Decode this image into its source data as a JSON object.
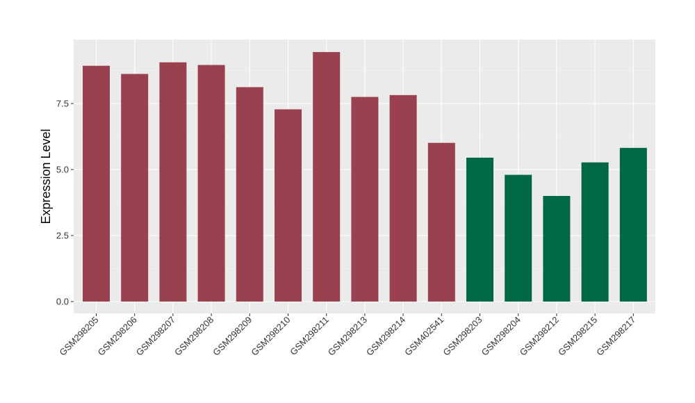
{
  "chart_data": {
    "type": "bar",
    "title": "",
    "xlabel": "",
    "ylabel": "Expression Level",
    "ylim": [
      0,
      9.9
    ],
    "yticks": [
      0,
      2.5,
      5,
      7.5
    ],
    "ytick_labels": [
      "0.0",
      "2.5",
      "5.0",
      "7.5"
    ],
    "grid": true,
    "panel_background": "#EBEBEB",
    "categories": [
      "GSM298205",
      "GSM298206",
      "GSM298207",
      "GSM298208",
      "GSM298209",
      "GSM298210",
      "GSM298211",
      "GSM298213",
      "GSM298214",
      "GSM402541",
      "GSM298203",
      "GSM298204",
      "GSM298212",
      "GSM298215",
      "GSM298217"
    ],
    "values": [
      8.93,
      8.62,
      9.06,
      8.96,
      8.12,
      7.28,
      9.45,
      7.75,
      7.82,
      6.01,
      5.45,
      4.8,
      4.0,
      5.27,
      5.82
    ],
    "groups": [
      0,
      0,
      0,
      0,
      0,
      0,
      0,
      0,
      0,
      0,
      1,
      1,
      1,
      1,
      1
    ],
    "group_colors": [
      "#99414F",
      "#006845"
    ]
  }
}
